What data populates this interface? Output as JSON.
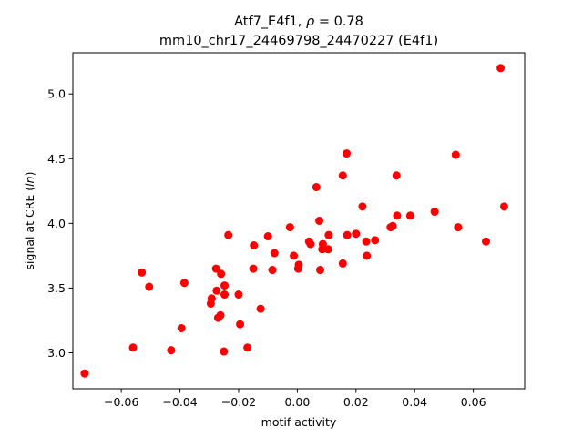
{
  "chart_data": {
    "type": "scatter",
    "title_line1": "Atf7_E4f1, ",
    "title_rho_symbol": "ρ",
    "title_rho_value": " = 0.78",
    "title_line2": "mm10_chr17_24469798_24470227 (E4f1)",
    "xlabel": "motif activity",
    "ylabel_prefix": "signal at CRE (",
    "ylabel_italic": "ln",
    "ylabel_suffix": ")",
    "xlim": [
      -0.0765,
      0.0775
    ],
    "ylim": [
      2.722,
      5.318
    ],
    "x_ticks": [
      -0.06,
      -0.04,
      -0.02,
      0.0,
      0.02,
      0.04,
      0.06
    ],
    "x_tick_labels": [
      "−0.06",
      "−0.04",
      "−0.02",
      "0.00",
      "0.02",
      "0.04",
      "0.06"
    ],
    "y_ticks": [
      3.0,
      3.5,
      4.0,
      4.5,
      5.0
    ],
    "y_tick_labels": [
      "3.0",
      "3.5",
      "4.0",
      "4.5",
      "5.0"
    ],
    "grid": false,
    "marker_color": "#ff0000",
    "points": [
      {
        "x": -0.0725,
        "y": 2.84
      },
      {
        "x": -0.056,
        "y": 3.04
      },
      {
        "x": -0.053,
        "y": 3.62
      },
      {
        "x": -0.0505,
        "y": 3.51
      },
      {
        "x": -0.043,
        "y": 3.02
      },
      {
        "x": -0.0395,
        "y": 3.19
      },
      {
        "x": -0.0385,
        "y": 3.54
      },
      {
        "x": -0.0295,
        "y": 3.38
      },
      {
        "x": -0.0292,
        "y": 3.42
      },
      {
        "x": -0.0277,
        "y": 3.65
      },
      {
        "x": -0.0275,
        "y": 3.48
      },
      {
        "x": -0.027,
        "y": 3.27
      },
      {
        "x": -0.0262,
        "y": 3.29
      },
      {
        "x": -0.026,
        "y": 3.61
      },
      {
        "x": -0.025,
        "y": 3.01
      },
      {
        "x": -0.0248,
        "y": 3.45
      },
      {
        "x": -0.0248,
        "y": 3.52
      },
      {
        "x": -0.0235,
        "y": 3.91
      },
      {
        "x": -0.02,
        "y": 3.45
      },
      {
        "x": -0.0195,
        "y": 3.22
      },
      {
        "x": -0.017,
        "y": 3.04
      },
      {
        "x": -0.015,
        "y": 3.65
      },
      {
        "x": -0.0148,
        "y": 3.83
      },
      {
        "x": -0.0125,
        "y": 3.34
      },
      {
        "x": -0.01,
        "y": 3.9
      },
      {
        "x": -0.0085,
        "y": 3.64
      },
      {
        "x": -0.0078,
        "y": 3.77
      },
      {
        "x": -0.0025,
        "y": 3.97
      },
      {
        "x": -0.0012,
        "y": 3.75
      },
      {
        "x": 0.0003,
        "y": 3.65
      },
      {
        "x": 0.0005,
        "y": 3.68
      },
      {
        "x": 0.004,
        "y": 3.86
      },
      {
        "x": 0.0045,
        "y": 3.84
      },
      {
        "x": 0.0065,
        "y": 4.28
      },
      {
        "x": 0.0075,
        "y": 4.02
      },
      {
        "x": 0.0078,
        "y": 3.64
      },
      {
        "x": 0.0085,
        "y": 3.8
      },
      {
        "x": 0.0087,
        "y": 3.84
      },
      {
        "x": 0.0105,
        "y": 3.8
      },
      {
        "x": 0.0107,
        "y": 3.91
      },
      {
        "x": 0.0155,
        "y": 4.37
      },
      {
        "x": 0.0155,
        "y": 3.69
      },
      {
        "x": 0.0168,
        "y": 4.54
      },
      {
        "x": 0.017,
        "y": 3.91
      },
      {
        "x": 0.02,
        "y": 3.92
      },
      {
        "x": 0.0222,
        "y": 4.13
      },
      {
        "x": 0.0235,
        "y": 3.86
      },
      {
        "x": 0.0237,
        "y": 3.75
      },
      {
        "x": 0.0265,
        "y": 3.87
      },
      {
        "x": 0.0318,
        "y": 3.97
      },
      {
        "x": 0.0325,
        "y": 3.98
      },
      {
        "x": 0.0338,
        "y": 4.37
      },
      {
        "x": 0.034,
        "y": 4.06
      },
      {
        "x": 0.0385,
        "y": 4.06
      },
      {
        "x": 0.0468,
        "y": 4.09
      },
      {
        "x": 0.054,
        "y": 4.53
      },
      {
        "x": 0.0548,
        "y": 3.97
      },
      {
        "x": 0.0643,
        "y": 3.86
      },
      {
        "x": 0.0693,
        "y": 5.2
      },
      {
        "x": 0.0705,
        "y": 4.13
      }
    ]
  }
}
